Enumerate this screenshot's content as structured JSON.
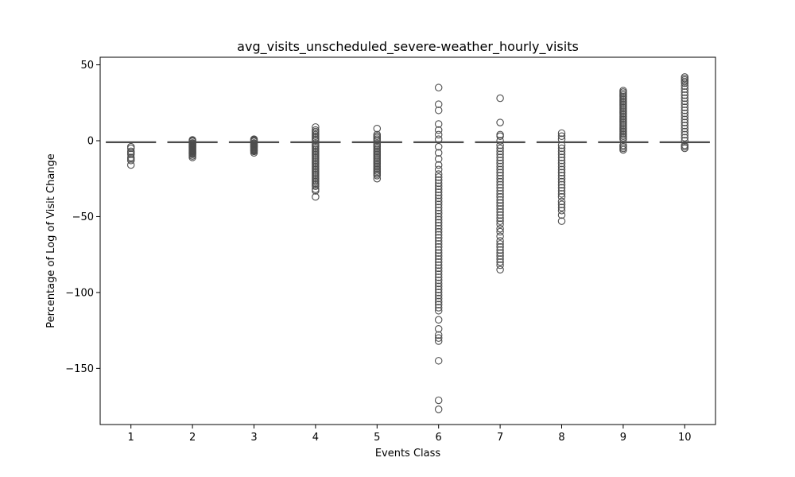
{
  "chart_data": {
    "type": "box",
    "title": "avg_visits_unscheduled_severe-weather_hourly_visits",
    "xlabel": "Events Class",
    "ylabel": "Percentage of Log of Visit Change",
    "ylim": [
      -187,
      55
    ],
    "yticks": [
      50,
      0,
      -50,
      -100,
      -150
    ],
    "ytick_labels": [
      "50",
      "0",
      "−50",
      "−100",
      "−150"
    ],
    "categories": [
      "1",
      "2",
      "3",
      "4",
      "5",
      "6",
      "7",
      "8",
      "9",
      "10"
    ],
    "box_color": "#4d4d4d",
    "grid": false,
    "legend": "none",
    "boxes": [
      {
        "category": "1",
        "median": -1,
        "q1": -1,
        "q3": -1,
        "whisker_low": -1,
        "whisker_high": -1,
        "outliers": [
          -4,
          -5,
          -7,
          -8,
          -9,
          -11,
          -12,
          -13,
          -16
        ]
      },
      {
        "category": "2",
        "median": -1,
        "q1": -1,
        "q3": -1,
        "whisker_low": -1,
        "whisker_high": -1,
        "outliers": [
          0.5,
          0,
          -0.5,
          -1.5,
          -2,
          -2.5,
          -3,
          -3.5,
          -4,
          -4.5,
          -5,
          -5.5,
          -6,
          -6.5,
          -7,
          -7.5,
          -8,
          -8.5,
          -9,
          -10,
          -11
        ]
      },
      {
        "category": "3",
        "median": -1,
        "q1": -1,
        "q3": -1,
        "whisker_low": -1,
        "whisker_high": -1,
        "outliers": [
          1,
          0.5,
          0,
          -0.5,
          -1.5,
          -2,
          -2.5,
          -3,
          -3.5,
          -4,
          -4.5,
          -5,
          -5.5,
          -6,
          -6.5,
          -7,
          -8
        ]
      },
      {
        "category": "4",
        "median": -1,
        "q1": -1,
        "q3": -1,
        "whisker_low": -1,
        "whisker_high": -1,
        "outliers": [
          9,
          7,
          6,
          5,
          4,
          3,
          2,
          1,
          0,
          -2,
          -3,
          -4,
          -5,
          -6,
          -7,
          -8,
          -9,
          -10,
          -11,
          -12,
          -13,
          -14,
          -15,
          -16,
          -17,
          -18,
          -19,
          -20,
          -21,
          -22,
          -23,
          -24,
          -25,
          -26,
          -27,
          -28,
          -29,
          -30,
          -32,
          -33,
          -37
        ]
      },
      {
        "category": "5",
        "median": -1,
        "q1": -1,
        "q3": -1,
        "whisker_low": -1,
        "whisker_high": -1,
        "outliers": [
          8,
          4,
          3,
          2,
          1,
          0,
          -2,
          -3,
          -4,
          -5,
          -6,
          -7,
          -8,
          -9,
          -10,
          -11,
          -12,
          -13,
          -14,
          -15,
          -16,
          -17,
          -18,
          -19,
          -20,
          -21,
          -22,
          -23,
          -25
        ]
      },
      {
        "category": "6",
        "median": -1,
        "q1": -1,
        "q3": -1,
        "whisker_low": -1,
        "whisker_high": -1,
        "outliers": [
          35,
          24,
          20,
          11,
          7,
          4,
          1,
          -4,
          -8,
          -12,
          -16,
          -19,
          -22,
          -24,
          -26,
          -28,
          -30,
          -32,
          -34,
          -36,
          -38,
          -40,
          -42,
          -44,
          -46,
          -48,
          -50,
          -52,
          -54,
          -56,
          -58,
          -60,
          -62,
          -64,
          -66,
          -68,
          -70,
          -72,
          -74,
          -76,
          -78,
          -80,
          -82,
          -84,
          -86,
          -88,
          -90,
          -92,
          -94,
          -96,
          -98,
          -100,
          -102,
          -104,
          -106,
          -108,
          -110,
          -112,
          -118,
          -124,
          -128,
          -130,
          -132,
          -145,
          -171,
          -177
        ]
      },
      {
        "category": "7",
        "median": -1,
        "q1": -1,
        "q3": -1,
        "whisker_low": -1,
        "whisker_high": -1,
        "outliers": [
          28,
          12,
          4,
          3,
          0,
          -3,
          -5,
          -7,
          -9,
          -11,
          -13,
          -15,
          -17,
          -19,
          -21,
          -23,
          -25,
          -27,
          -29,
          -31,
          -33,
          -35,
          -37,
          -39,
          -41,
          -43,
          -45,
          -47,
          -49,
          -51,
          -53,
          -55,
          -58,
          -60,
          -63,
          -66,
          -68,
          -70,
          -72,
          -74,
          -76,
          -78,
          -80,
          -82,
          -85
        ]
      },
      {
        "category": "8",
        "median": -1,
        "q1": -1,
        "q3": -1,
        "whisker_low": -1,
        "whisker_high": -1,
        "outliers": [
          5,
          3,
          1,
          -3,
          -5,
          -7,
          -9,
          -11,
          -13,
          -15,
          -17,
          -19,
          -21,
          -23,
          -25,
          -27,
          -29,
          -31,
          -33,
          -35,
          -37,
          -40,
          -42,
          -44,
          -46,
          -49,
          -53
        ]
      },
      {
        "category": "9",
        "median": -1,
        "q1": -1,
        "q3": -1,
        "whisker_low": -1,
        "whisker_high": -1,
        "outliers": [
          33,
          32,
          31,
          30,
          29,
          28,
          27,
          26,
          25,
          24,
          23,
          22,
          21,
          20,
          19,
          18,
          17,
          16,
          15,
          14,
          13,
          12,
          11,
          10,
          9,
          8,
          7,
          6,
          5,
          4,
          3,
          2,
          1,
          -3,
          -4,
          -5,
          -6
        ]
      },
      {
        "category": "10",
        "median": -1,
        "q1": -1,
        "q3": -1,
        "whisker_low": -1,
        "whisker_high": -1,
        "outliers": [
          42,
          41,
          40,
          39,
          38,
          36,
          34,
          32,
          30,
          28,
          26,
          24,
          22,
          20,
          18,
          16,
          14,
          12,
          10,
          8,
          6,
          4,
          2,
          0,
          -3,
          -4,
          -5
        ]
      }
    ]
  }
}
